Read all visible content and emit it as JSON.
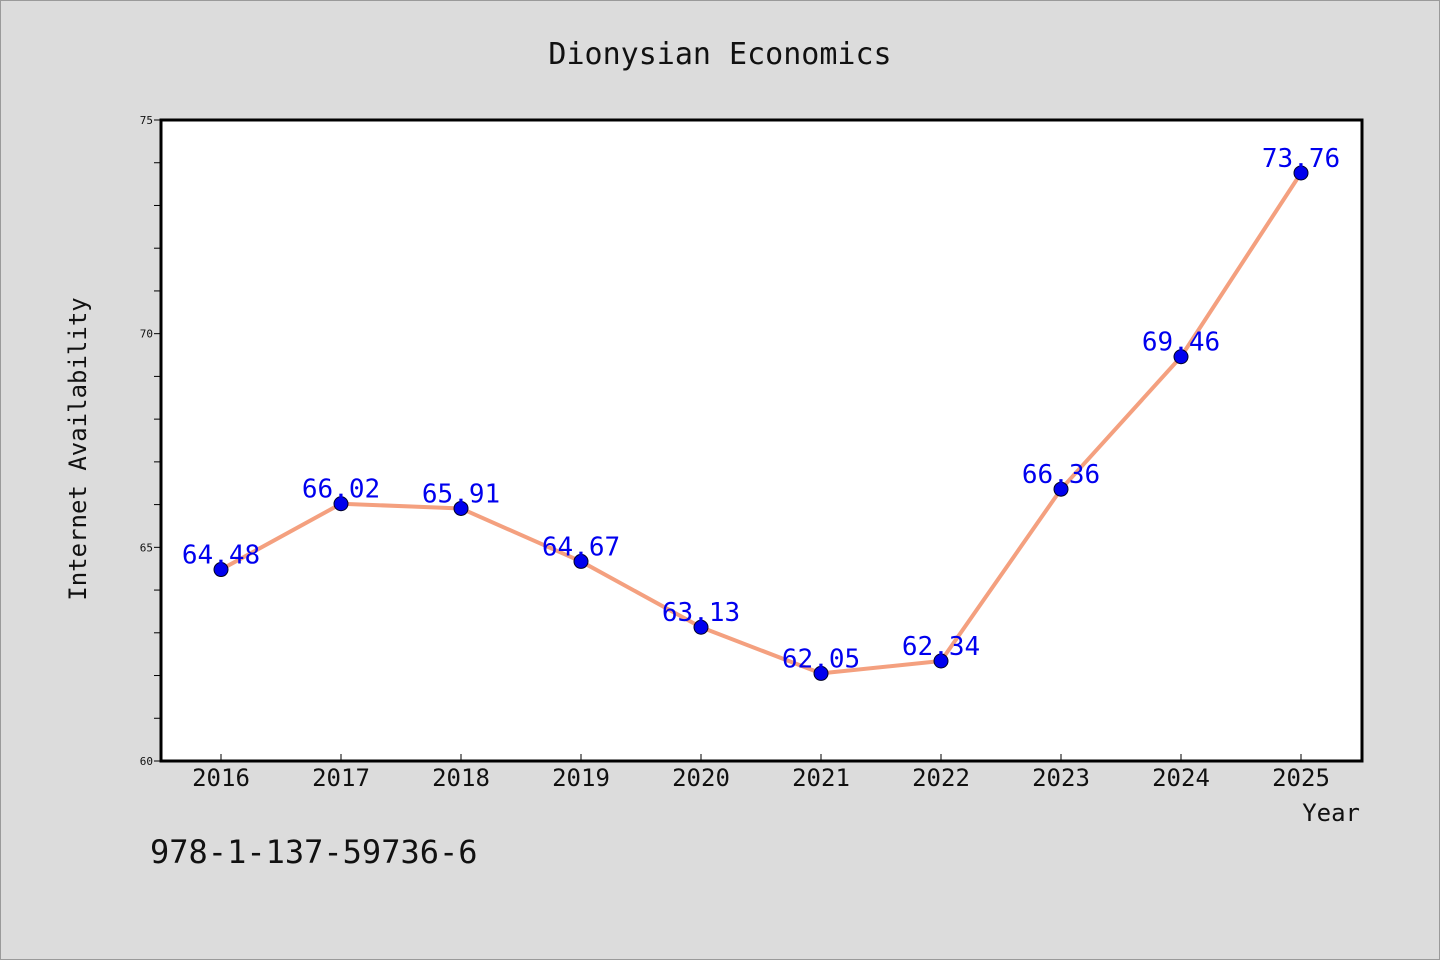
{
  "chart_data": {
    "type": "line",
    "title": "Dionysian Economics",
    "xlabel": "Year",
    "ylabel": "Internet Availability",
    "categories": [
      "2016",
      "2017",
      "2018",
      "2019",
      "2020",
      "2021",
      "2022",
      "2023",
      "2024",
      "2025"
    ],
    "series": [
      {
        "values": [
          64.48,
          66.02,
          65.91,
          64.67,
          63.13,
          62.05,
          62.34,
          66.36,
          69.46,
          73.76
        ]
      }
    ],
    "data_labels": [
      "64.48",
      "66.02",
      "65.91",
      "64.67",
      "63.13",
      "62.05",
      "62.34",
      "66.36",
      "69.46",
      "73.76"
    ],
    "ylim": [
      60,
      75
    ],
    "yticks": [
      "60",
      "65",
      "70",
      "75"
    ],
    "grid": false,
    "legend": "none",
    "colors": {
      "line": "#f4a07f",
      "marker": "#0000ee",
      "data_label": "#0000ee",
      "plot_background": "#ffffff",
      "page_background": "#dcdcdc"
    }
  },
  "footer": {
    "isbn": "978-1-137-59736-6"
  }
}
